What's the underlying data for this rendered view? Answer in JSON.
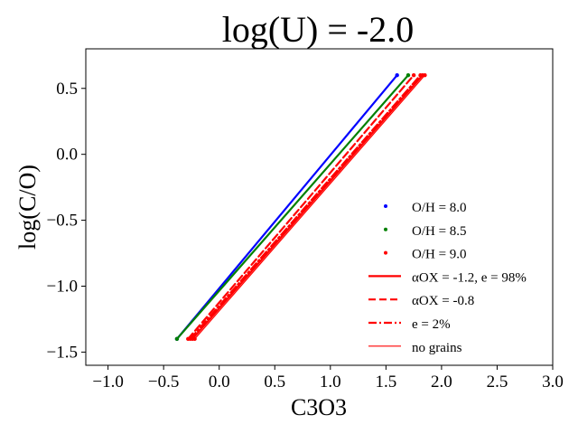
{
  "chart_data": {
    "type": "line",
    "title": "log(U) = -2.0",
    "xlabel": "C3O3",
    "ylabel": "log(C/O)",
    "xlim": [
      -1.2,
      3.0
    ],
    "ylim": [
      -1.6,
      0.8
    ],
    "xticks": [
      -1.0,
      -0.5,
      0.0,
      0.5,
      1.0,
      1.5,
      2.0,
      2.5,
      3.0
    ],
    "xtick_labels": [
      "−1.0",
      "−0.5",
      "0.0",
      "0.5",
      "1.0",
      "1.5",
      "2.0",
      "2.5",
      "3.0"
    ],
    "yticks": [
      -1.5,
      -1.0,
      -0.5,
      0.0,
      0.5
    ],
    "ytick_labels": [
      "−1.5",
      "−1.0",
      "−0.5",
      "0.0",
      "0.5"
    ],
    "grid": false,
    "legend_position": "lower-right",
    "series": [
      {
        "name": "O/H = 8.0, α_OX = -1.2, e = 98%",
        "color": "#0000ff",
        "style": "solid",
        "x": [
          -0.38,
          1.6
        ],
        "y": [
          -1.4,
          0.6
        ]
      },
      {
        "name": "O/H = 8.5, α_OX = -1.2, e = 98%",
        "color": "#008000",
        "style": "solid",
        "x": [
          -0.38,
          1.7
        ],
        "y": [
          -1.4,
          0.6
        ]
      },
      {
        "name": "O/H = 9.0, α_OX = -1.2, e = 98%",
        "color": "#ff0000",
        "style": "solid",
        "x": [
          -0.24,
          1.83
        ],
        "y": [
          -1.4,
          0.6
        ]
      },
      {
        "name": "O/H = 9.0, α_OX = -0.8",
        "color": "#ff0000",
        "style": "dashed",
        "x": [
          -0.28,
          1.75
        ],
        "y": [
          -1.4,
          0.6
        ]
      },
      {
        "name": "O/H = 9.0, e = 2%",
        "color": "#ff0000",
        "style": "dashdot",
        "x": [
          -0.26,
          1.81
        ],
        "y": [
          -1.4,
          0.6
        ]
      },
      {
        "name": "O/H = 9.0, no grains",
        "color": "#ff0000",
        "style": "thin",
        "x": [
          -0.22,
          1.85
        ],
        "y": [
          -1.4,
          0.6
        ]
      }
    ],
    "legend": [
      {
        "kind": "marker",
        "color": "#0000ff",
        "label": "O/H = 8.0"
      },
      {
        "kind": "marker",
        "color": "#008000",
        "label": "O/H = 8.5"
      },
      {
        "kind": "marker",
        "color": "#ff0000",
        "label": "O/H = 9.0"
      },
      {
        "kind": "solid",
        "color": "#ff0000",
        "label": "αOX = -1.2, e = 98%"
      },
      {
        "kind": "dashed",
        "color": "#ff0000",
        "label": "αOX = -0.8"
      },
      {
        "kind": "dashdot",
        "color": "#ff0000",
        "label": "e = 2%"
      },
      {
        "kind": "thin",
        "color": "#ff0000",
        "label": "no grains"
      }
    ]
  }
}
